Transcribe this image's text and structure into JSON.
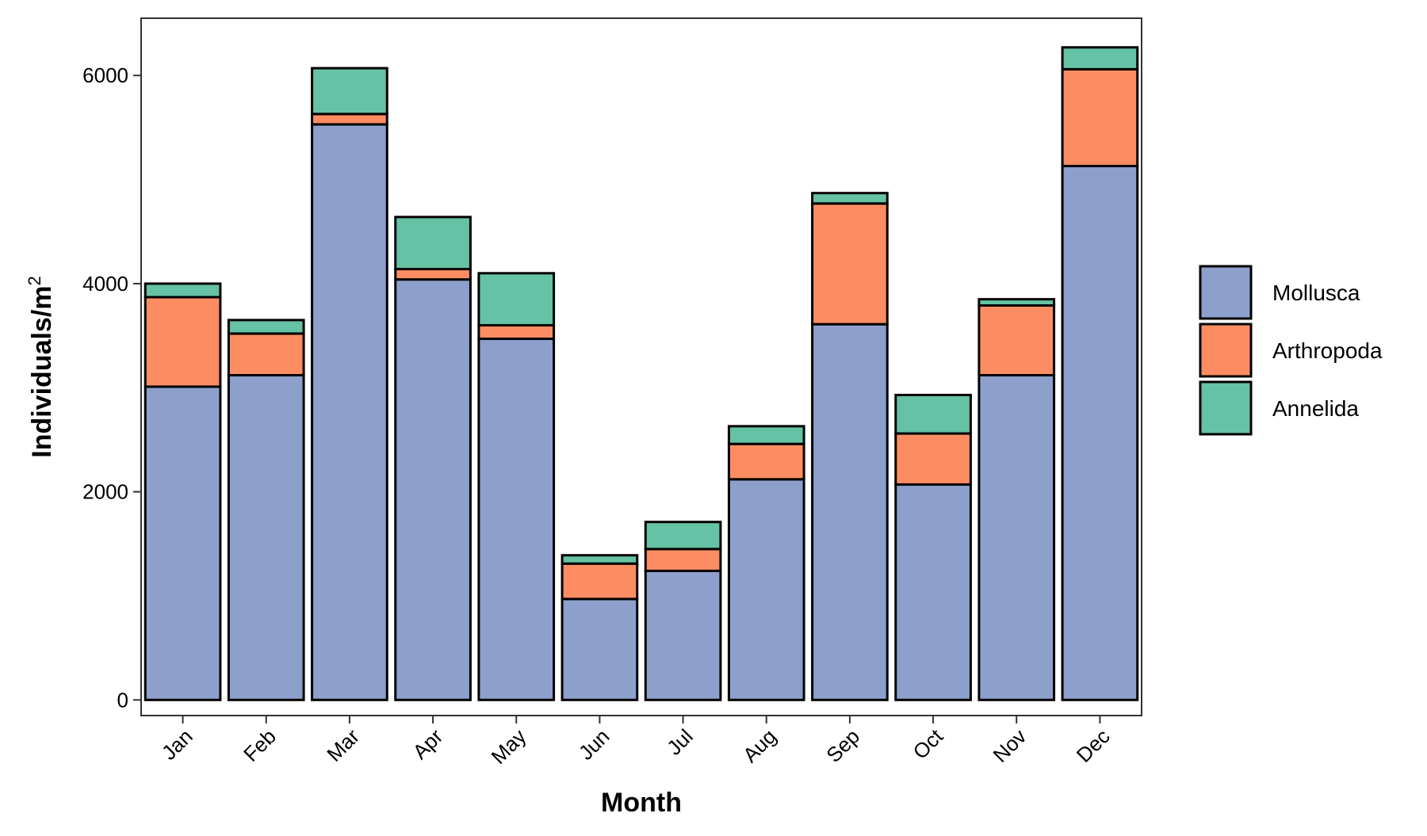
{
  "chart_data": {
    "type": "bar",
    "stacked": true,
    "title": "",
    "xlabel": "Month",
    "ylabel": "Individuals/m",
    "ylabel_superscript": "2",
    "categories": [
      "Jan",
      "Feb",
      "Mar",
      "Apr",
      "May",
      "Jun",
      "Jul",
      "Aug",
      "Sep",
      "Oct",
      "Nov",
      "Dec"
    ],
    "ylim": [
      -150,
      6550
    ],
    "yticks": [
      0,
      2000,
      4000,
      6000
    ],
    "grid": false,
    "legend_position": "right",
    "series": [
      {
        "name": "Mollusca",
        "color": "#8DA0CB",
        "values": [
          3010,
          3120,
          5530,
          4040,
          3470,
          970,
          1240,
          2120,
          3610,
          2070,
          3120,
          5130
        ]
      },
      {
        "name": "Arthropoda",
        "color": "#FC8D62",
        "values": [
          860,
          400,
          100,
          100,
          130,
          340,
          210,
          340,
          1160,
          490,
          670,
          930
        ]
      },
      {
        "name": "Annelida",
        "color": "#66C2A5",
        "values": [
          130,
          130,
          440,
          500,
          500,
          80,
          260,
          170,
          100,
          370,
          60,
          210
        ]
      }
    ],
    "legend_order": [
      "Mollusca",
      "Arthropoda",
      "Annelida"
    ]
  }
}
